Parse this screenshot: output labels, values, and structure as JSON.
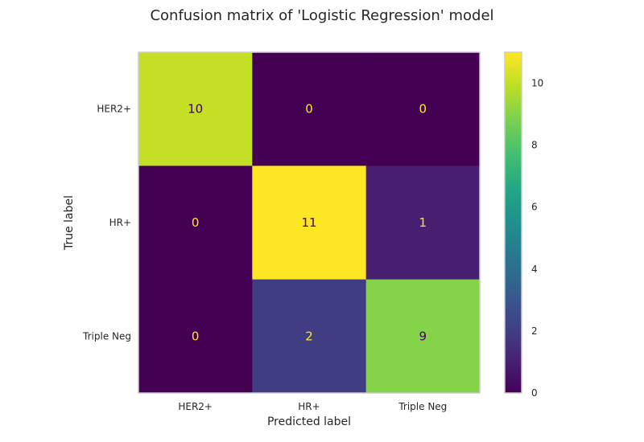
{
  "chart_data": {
    "type": "heatmap",
    "title": "Confusion matrix of 'Logistic Regression' model",
    "xlabel": "Predicted label",
    "ylabel": "True label",
    "x_categories": [
      "HER2+",
      "HR+",
      "Triple Neg"
    ],
    "y_categories": [
      "HER2+",
      "HR+",
      "Triple Neg"
    ],
    "values": [
      [
        10,
        0,
        0
      ],
      [
        0,
        11,
        1
      ],
      [
        0,
        2,
        9
      ]
    ],
    "colormap": "viridis",
    "vmin": 0,
    "vmax": 11,
    "colorbar_ticks": [
      0,
      2,
      4,
      6,
      8,
      10
    ],
    "grid": false
  }
}
